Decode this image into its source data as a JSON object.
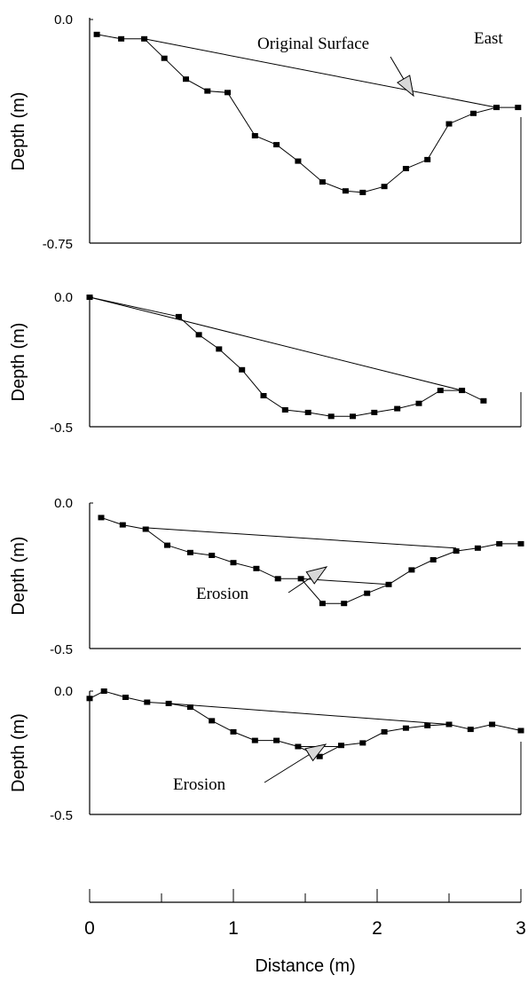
{
  "chart_data": [
    {
      "type": "line",
      "panel": 1,
      "ylabel": "Depth (m)",
      "yticks": [
        "0.0",
        "-0.75"
      ],
      "ylim": [
        -0.75,
        0.0
      ],
      "xlim": [
        0,
        3
      ],
      "annotations": [
        {
          "text": "Original Surface"
        },
        {
          "text": "East"
        }
      ],
      "series": [
        {
          "role": "profile",
          "x": [
            0.05,
            0.22,
            0.38,
            0.52,
            0.67,
            0.82,
            0.96,
            1.15,
            1.3,
            1.45,
            1.62,
            1.78,
            1.9,
            2.05,
            2.2,
            2.35,
            2.5,
            2.67,
            2.83,
            2.98
          ],
          "y": [
            -0.05,
            -0.065,
            -0.065,
            -0.13,
            -0.2,
            -0.24,
            -0.245,
            -0.39,
            -0.42,
            -0.475,
            -0.545,
            -0.575,
            -0.58,
            -0.56,
            -0.5,
            -0.47,
            -0.35,
            -0.315,
            -0.295,
            -0.295
          ]
        },
        {
          "role": "original-surface",
          "x": [
            0.38,
            2.83
          ],
          "y": [
            -0.065,
            -0.295
          ]
        }
      ]
    },
    {
      "type": "line",
      "panel": 2,
      "ylabel": "Depth (m)",
      "yticks": [
        "0.0",
        "-0.5"
      ],
      "ylim": [
        -0.5,
        0.0
      ],
      "xlim": [
        0,
        3
      ],
      "series": [
        {
          "role": "profile",
          "x": [
            0.0,
            0.62,
            0.76,
            0.9,
            1.06,
            1.21,
            1.36,
            1.52,
            1.68,
            1.83,
            1.98,
            2.14,
            2.29,
            2.44,
            2.59,
            2.74
          ],
          "y": [
            0.0,
            -0.075,
            -0.145,
            -0.2,
            -0.28,
            -0.38,
            -0.435,
            -0.445,
            -0.46,
            -0.46,
            -0.445,
            -0.43,
            -0.41,
            -0.36,
            -0.36,
            -0.4
          ]
        },
        {
          "role": "original-surface",
          "x": [
            0.0,
            2.59
          ],
          "y": [
            0.0,
            -0.36
          ]
        }
      ]
    },
    {
      "type": "line",
      "panel": 3,
      "ylabel": "Depth (m)",
      "yticks": [
        "0.0",
        "-0.5"
      ],
      "ylim": [
        -0.5,
        0.0
      ],
      "xlim": [
        0,
        3
      ],
      "annotations": [
        {
          "text": "Erosion"
        }
      ],
      "series": [
        {
          "role": "profile",
          "x": [
            0.08,
            0.23,
            0.39,
            0.54,
            0.7,
            0.85,
            1.0,
            1.16,
            1.31,
            1.47,
            1.62,
            1.77,
            1.93,
            2.08,
            2.24,
            2.39,
            2.55,
            2.7,
            2.85,
            3.0
          ],
          "y": [
            -0.05,
            -0.075,
            -0.09,
            -0.145,
            -0.17,
            -0.18,
            -0.205,
            -0.225,
            -0.26,
            -0.26,
            -0.345,
            -0.345,
            -0.31,
            -0.28,
            -0.23,
            -0.195,
            -0.165,
            -0.155,
            -0.14,
            -0.14
          ]
        },
        {
          "role": "original-surface",
          "x": [
            0.39,
            2.55
          ],
          "y": [
            -0.085,
            -0.155
          ]
        },
        {
          "role": "reference",
          "x": [
            1.47,
            2.08
          ],
          "y": [
            -0.26,
            -0.28
          ]
        }
      ]
    },
    {
      "type": "line",
      "panel": 4,
      "ylabel": "Depth (m)",
      "yticks": [
        "0.0",
        "-0.5"
      ],
      "ylim": [
        -0.5,
        0.0
      ],
      "xlim": [
        0,
        3
      ],
      "xlabel": "Distance (m)",
      "xticks": [
        "0",
        "1",
        "2",
        "3"
      ],
      "annotations": [
        {
          "text": "Erosion"
        }
      ],
      "series": [
        {
          "role": "profile",
          "x": [
            0.0,
            0.1,
            0.25,
            0.4,
            0.55,
            0.7,
            0.85,
            1.0,
            1.15,
            1.3,
            1.45,
            1.6,
            1.75,
            1.9,
            2.05,
            2.2,
            2.35,
            2.5,
            2.65,
            2.8,
            3.0
          ],
          "y": [
            -0.03,
            -0.0,
            -0.025,
            -0.045,
            -0.05,
            -0.065,
            -0.12,
            -0.165,
            -0.2,
            -0.2,
            -0.225,
            -0.265,
            -0.22,
            -0.21,
            -0.165,
            -0.15,
            -0.14,
            -0.135,
            -0.155,
            -0.135,
            -0.16
          ]
        },
        {
          "role": "original-surface",
          "x": [
            0.55,
            2.5
          ],
          "y": [
            -0.05,
            -0.135
          ]
        },
        {
          "role": "reference",
          "x": [
            1.45,
            1.75
          ],
          "y": [
            -0.225,
            -0.225
          ]
        }
      ]
    }
  ]
}
